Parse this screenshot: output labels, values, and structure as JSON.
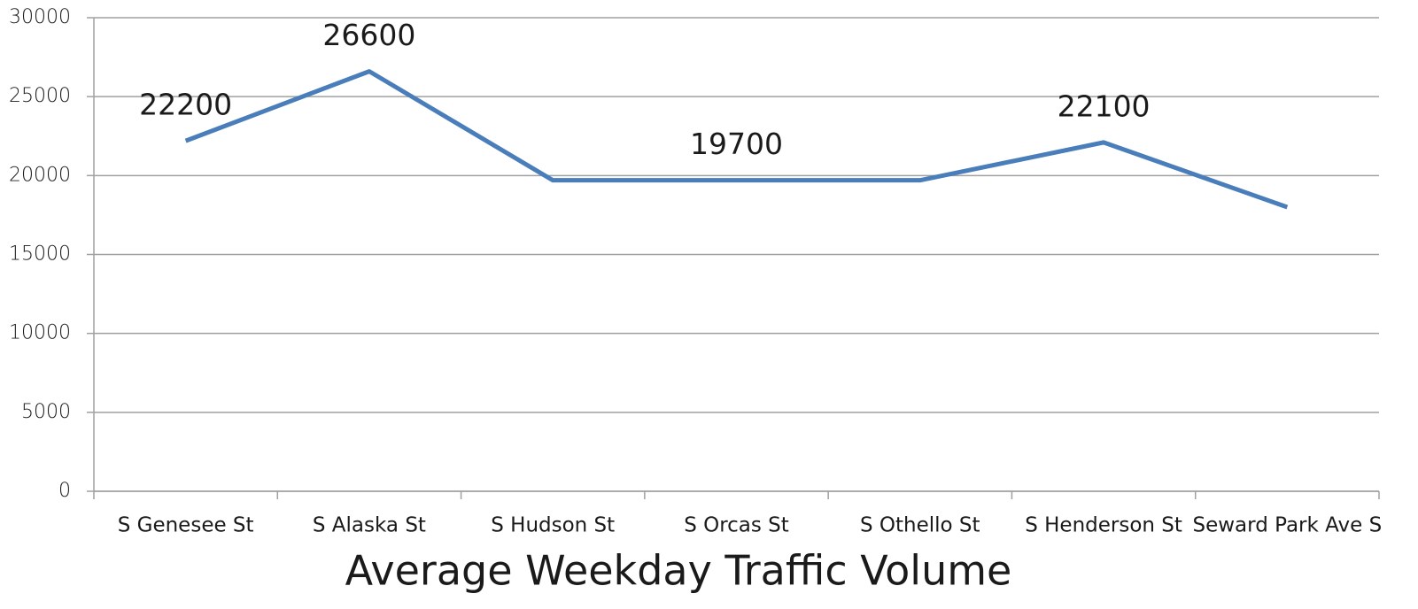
{
  "chart_data": {
    "type": "line",
    "title": "Average Weekday Traffic Volume",
    "categories": [
      "S Genesee St",
      "S Alaska St",
      "S Hudson St",
      "S Orcas St",
      "S Othello St",
      "S Henderson St",
      "Seward Park Ave S"
    ],
    "series": [
      {
        "color": "#4a7ebb",
        "values": [
          22200,
          26600,
          19700,
          19700,
          19700,
          22100,
          18000
        ],
        "value_labels": [
          "22200",
          "26600",
          null,
          "19700",
          null,
          "22100",
          null
        ]
      }
    ],
    "ylim": [
      0,
      30000
    ],
    "yticks": [
      0,
      5000,
      10000,
      15000,
      20000,
      25000,
      30000
    ],
    "grid": true
  }
}
